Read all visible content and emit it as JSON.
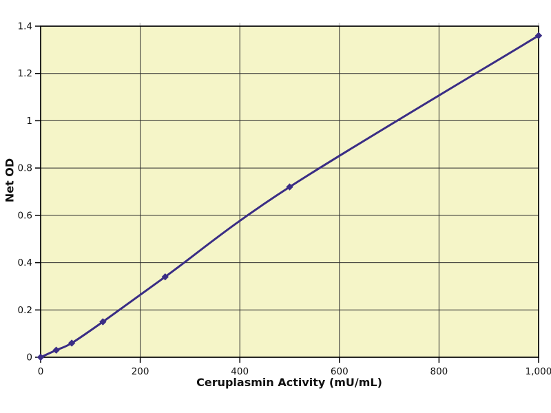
{
  "page": {
    "background": "#ffffff"
  },
  "chart_data": {
    "type": "line",
    "title": "",
    "xlabel": "Ceruplasmin Activity (mU/mL)",
    "ylabel": "Net OD",
    "xlim": [
      0,
      1000
    ],
    "ylim": [
      0,
      1.4
    ],
    "x_ticks": [
      0,
      200,
      400,
      600,
      800,
      1000
    ],
    "x_tick_labels": [
      "0",
      "200",
      "400",
      "600",
      "800",
      "1,000"
    ],
    "y_ticks": [
      0,
      0.2,
      0.4,
      0.6,
      0.8,
      1,
      1.2,
      1.4
    ],
    "y_tick_labels": [
      "0",
      "0.2",
      "0.4",
      "0.6",
      "0.8",
      "1",
      "1.2",
      "1.4"
    ],
    "grid": true,
    "legend": "none",
    "plot_background": "#f5f5c8",
    "grid_color": "#2a2a2a",
    "border_color": "#000000",
    "top_minor_tick_color": "#d9d9d9",
    "series": [
      {
        "x": [
          0,
          31.25,
          62.5,
          125,
          250,
          500,
          1000
        ],
        "y": [
          0,
          0.03,
          0.06,
          0.15,
          0.34,
          0.72,
          1.36
        ],
        "color": "#3a2d85",
        "marker": "diamond",
        "line_style": "smooth"
      }
    ]
  }
}
